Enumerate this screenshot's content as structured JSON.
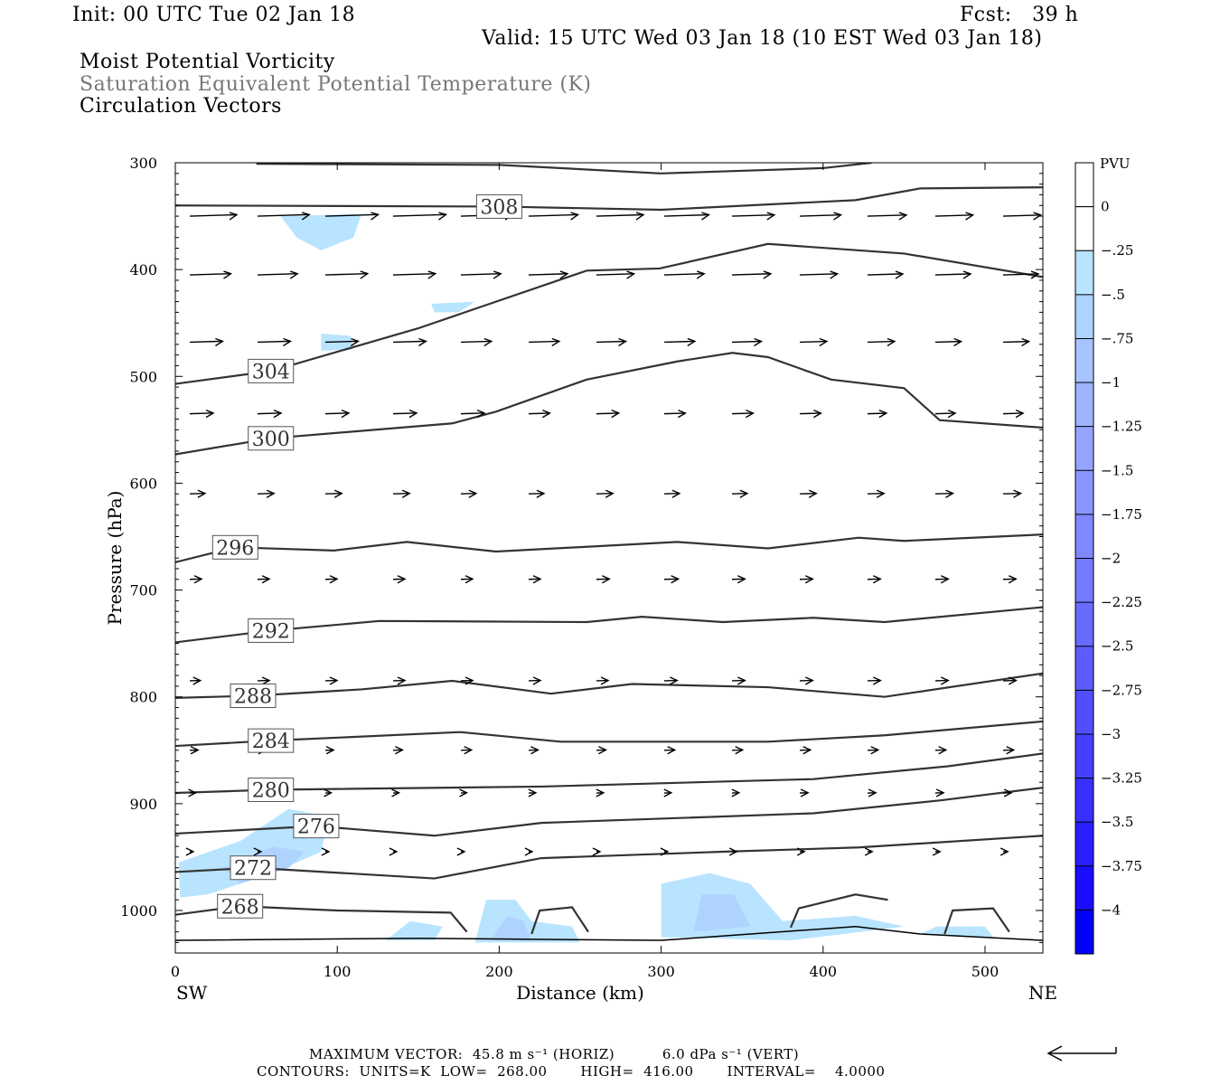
{
  "header": {
    "init": "Init: 00 UTC Tue 02 Jan 18",
    "fcst": "Fcst:   39 h",
    "valid": "Valid: 15 UTC Wed 03 Jan 18 (10 EST Wed 03 Jan 18)",
    "fields": [
      "Moist Potential Vorticity",
      "Saturation Equivalent Potential Temperature (K)",
      "Circulation Vectors"
    ]
  },
  "footer": {
    "max_vector": "MAXIMUM VECTOR:  45.8 m s⁻¹ (HORIZ)          6.0 dPa s⁻¹ (VERT)",
    "contours": "CONTOURS:  UNITS=K  LOW=  268.00       HIGH=  416.00       INTERVAL=    4.0000"
  },
  "chart_data": {
    "type": "cross-section",
    "xlabel": "Distance (km)",
    "ylabel": "Pressure (hPa)",
    "xlim": [
      0,
      536
    ],
    "ylim": [
      1040,
      300
    ],
    "xticks": [
      0,
      100,
      200,
      300,
      400,
      500
    ],
    "yticks": [
      300,
      400,
      500,
      600,
      700,
      800,
      900,
      1000
    ],
    "x_end_labels": [
      "SW",
      "NE"
    ],
    "colorbar": {
      "title": "PVU",
      "labels": [
        "0",
        "-.25",
        "-.5",
        "-.75",
        "-1",
        "-1.25",
        "-1.5",
        "-1.75",
        "-2",
        "-2.25",
        "-2.5",
        "-2.75",
        "-3",
        "-3.25",
        "-3.5",
        "-3.75",
        "-4"
      ],
      "colors": [
        "#ffffff",
        "#ffffff",
        "#b8e4ff",
        "#afd3ff",
        "#a8c4ff",
        "#9fb3ff",
        "#95a5ff",
        "#8a96ff",
        "#7f88ff",
        "#747aff",
        "#696bff",
        "#5d5cff",
        "#524eff",
        "#453fff",
        "#3930ff",
        "#2b1fff",
        "#1a0cff",
        "#0000ff"
      ]
    },
    "contours": [
      {
        "theta": 312,
        "label": "",
        "points": [
          [
            50,
            301
          ],
          [
            200,
            302
          ],
          [
            300,
            310
          ],
          [
            400,
            305
          ],
          [
            430,
            300
          ]
        ]
      },
      {
        "theta": 308,
        "label": "308",
        "points": [
          [
            0,
            340
          ],
          [
            200,
            341
          ],
          [
            300,
            344
          ],
          [
            420,
            335
          ],
          [
            460,
            324
          ],
          [
            536,
            323
          ]
        ]
      },
      {
        "theta": 304,
        "label": "304",
        "points": [
          [
            0,
            507
          ],
          [
            59,
            495
          ],
          [
            150,
            455
          ],
          [
            254,
            401
          ],
          [
            299,
            399
          ],
          [
            366,
            376
          ],
          [
            450,
            385
          ],
          [
            536,
            407
          ]
        ]
      },
      {
        "theta": 300,
        "label": "300",
        "points": [
          [
            0,
            573
          ],
          [
            59,
            558
          ],
          [
            171,
            544
          ],
          [
            198,
            533
          ],
          [
            254,
            503
          ],
          [
            310,
            486
          ],
          [
            344,
            478
          ],
          [
            366,
            482
          ],
          [
            405,
            503
          ],
          [
            450,
            511
          ],
          [
            472,
            541
          ],
          [
            536,
            548
          ]
        ]
      },
      {
        "theta": 296,
        "label": "296",
        "points": [
          [
            0,
            674
          ],
          [
            37,
            660
          ],
          [
            98,
            663
          ],
          [
            143,
            655
          ],
          [
            198,
            664
          ],
          [
            310,
            655
          ],
          [
            366,
            661
          ],
          [
            422,
            651
          ],
          [
            450,
            654
          ],
          [
            536,
            648
          ]
        ]
      },
      {
        "theta": 292,
        "label": "292",
        "points": [
          [
            0,
            749
          ],
          [
            59,
            738
          ],
          [
            126,
            729
          ],
          [
            254,
            730
          ],
          [
            288,
            725
          ],
          [
            338,
            730
          ],
          [
            394,
            726
          ],
          [
            438,
            730
          ],
          [
            536,
            716
          ]
        ]
      },
      {
        "theta": 288,
        "label": "288",
        "points": [
          [
            0,
            801
          ],
          [
            48,
            799
          ],
          [
            115,
            793
          ],
          [
            171,
            785
          ],
          [
            232,
            797
          ],
          [
            282,
            788
          ],
          [
            366,
            791
          ],
          [
            438,
            800
          ],
          [
            536,
            778
          ]
        ]
      },
      {
        "theta": 284,
        "label": "284",
        "points": [
          [
            0,
            846
          ],
          [
            59,
            841
          ],
          [
            176,
            833
          ],
          [
            238,
            842
          ],
          [
            366,
            842
          ],
          [
            438,
            836
          ],
          [
            536,
            823
          ]
        ]
      },
      {
        "theta": 280,
        "label": "280",
        "points": [
          [
            0,
            890
          ],
          [
            59,
            887
          ],
          [
            226,
            884
          ],
          [
            394,
            877
          ],
          [
            477,
            865
          ],
          [
            536,
            853
          ]
        ]
      },
      {
        "theta": 276,
        "label": "276",
        "points": [
          [
            0,
            928
          ],
          [
            87,
            921
          ],
          [
            160,
            930
          ],
          [
            226,
            918
          ],
          [
            394,
            909
          ],
          [
            472,
            897
          ],
          [
            536,
            885
          ]
        ]
      },
      {
        "theta": 272,
        "label": "272",
        "points": [
          [
            0,
            964
          ],
          [
            48,
            960
          ],
          [
            160,
            970
          ],
          [
            226,
            951
          ],
          [
            338,
            945
          ],
          [
            422,
            941
          ],
          [
            536,
            930
          ]
        ]
      },
      {
        "theta": 268,
        "label": "268",
        "points": [
          [
            0,
            1004
          ],
          [
            40,
            996
          ],
          [
            100,
            1000
          ],
          [
            170,
            1002
          ],
          [
            180,
            1020
          ]
        ]
      },
      {
        "theta": 268,
        "label": "",
        "points": [
          [
            380,
            1016
          ],
          [
            385,
            998
          ],
          [
            420,
            985
          ],
          [
            440,
            990
          ]
        ]
      },
      {
        "theta": 268,
        "label": "",
        "points": [
          [
            220,
            1022
          ],
          [
            225,
            1000
          ],
          [
            245,
            997
          ],
          [
            255,
            1020
          ]
        ]
      },
      {
        "theta": 268,
        "label": "",
        "points": [
          [
            475,
            1022
          ],
          [
            480,
            1000
          ],
          [
            505,
            998
          ],
          [
            515,
            1020
          ]
        ]
      },
      {
        "theta": 0,
        "label": "",
        "points": [
          [
            0,
            1028
          ],
          [
            150,
            1026
          ],
          [
            300,
            1028
          ],
          [
            420,
            1015
          ],
          [
            460,
            1022
          ],
          [
            536,
            1028
          ]
        ]
      }
    ],
    "pv_regions": [
      {
        "level": "-.25",
        "points": [
          [
            65,
            350
          ],
          [
            115,
            348
          ],
          [
            110,
            370
          ],
          [
            90,
            382
          ],
          [
            75,
            370
          ]
        ]
      },
      {
        "level": "-.25",
        "points": [
          [
            158,
            432
          ],
          [
            185,
            430
          ],
          [
            175,
            440
          ],
          [
            160,
            440
          ]
        ]
      },
      {
        "level": "-.25",
        "points": [
          [
            90,
            460
          ],
          [
            108,
            462
          ],
          [
            110,
            475
          ],
          [
            90,
            476
          ]
        ]
      },
      {
        "level": "-.25",
        "points": [
          [
            2,
            955
          ],
          [
            40,
            935
          ],
          [
            70,
            905
          ],
          [
            95,
            912
          ],
          [
            90,
            945
          ],
          [
            60,
            965
          ],
          [
            20,
            985
          ],
          [
            3,
            988
          ]
        ]
      },
      {
        "level": "-.5",
        "points": [
          [
            30,
            960
          ],
          [
            60,
            940
          ],
          [
            80,
            945
          ],
          [
            70,
            960
          ],
          [
            40,
            975
          ]
        ]
      },
      {
        "level": "-.25",
        "points": [
          [
            185,
            1030
          ],
          [
            192,
            990
          ],
          [
            210,
            990
          ],
          [
            220,
            1010
          ],
          [
            245,
            1015
          ],
          [
            250,
            1030
          ]
        ]
      },
      {
        "level": "-.5",
        "points": [
          [
            195,
            1028
          ],
          [
            205,
            1005
          ],
          [
            215,
            1010
          ],
          [
            220,
            1028
          ]
        ]
      },
      {
        "level": "-.25",
        "points": [
          [
            300,
            1025
          ],
          [
            300,
            975
          ],
          [
            330,
            965
          ],
          [
            355,
            975
          ],
          [
            375,
            1010
          ],
          [
            420,
            1005
          ],
          [
            450,
            1015
          ],
          [
            380,
            1028
          ]
        ]
      },
      {
        "level": "-.5",
        "points": [
          [
            320,
            1020
          ],
          [
            325,
            985
          ],
          [
            345,
            985
          ],
          [
            355,
            1015
          ]
        ]
      },
      {
        "level": "-.25",
        "points": [
          [
            130,
            1028
          ],
          [
            145,
            1010
          ],
          [
            165,
            1015
          ],
          [
            160,
            1028
          ]
        ]
      },
      {
        "level": "-.25",
        "points": [
          [
            460,
            1022
          ],
          [
            470,
            1015
          ],
          [
            500,
            1015
          ],
          [
            505,
            1025
          ]
        ]
      }
    ],
    "vectors": [
      {
        "p": 350,
        "u": [
          40,
          44,
          45,
          45,
          44,
          42,
          40,
          38,
          36,
          35,
          33,
          32,
          32
        ]
      },
      {
        "p": 405,
        "u": [
          35,
          34,
          36,
          36,
          34,
          33,
          32,
          34,
          33,
          32,
          30,
          30,
          30
        ]
      },
      {
        "p": 468,
        "u": [
          28,
          28,
          28,
          28,
          26,
          26,
          25,
          26,
          25,
          23,
          23,
          22,
          22
        ]
      },
      {
        "p": 535,
        "u": [
          20,
          20,
          20,
          20,
          20,
          18,
          19,
          18,
          18,
          18,
          16,
          17,
          17
        ]
      },
      {
        "p": 610,
        "u": [
          13,
          14,
          14,
          14,
          13,
          13,
          14,
          13,
          13,
          14,
          14,
          15,
          15
        ]
      },
      {
        "p": 690,
        "u": [
          10,
          10,
          10,
          10,
          10,
          10,
          11,
          12,
          11,
          11,
          11,
          11,
          11
        ]
      },
      {
        "p": 785,
        "u": [
          9,
          10,
          10,
          10,
          10,
          10,
          10,
          11,
          11,
          11,
          11,
          11,
          11
        ]
      },
      {
        "p": 850,
        "u": [
          7,
          7,
          7,
          8,
          9,
          8,
          8,
          9,
          9,
          9,
          9,
          9,
          9
        ]
      },
      {
        "p": 890,
        "u": [
          5,
          5,
          5,
          5,
          5,
          6,
          6,
          6,
          6,
          7,
          7,
          7,
          7
        ]
      },
      {
        "p": 945,
        "u": [
          3,
          3,
          3,
          3,
          3,
          3,
          3,
          3,
          4,
          4,
          4,
          4,
          4
        ]
      }
    ]
  }
}
